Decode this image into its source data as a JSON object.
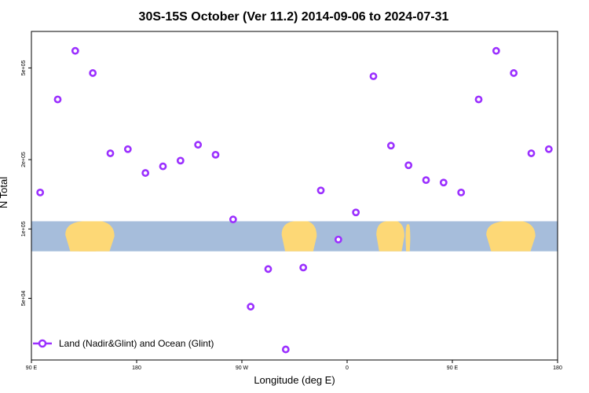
{
  "chart_data": {
    "type": "scatter",
    "title": "30S-15S October (Ver 11.2)   2014-09-06 to 2024-07-31",
    "xlabel": "Longitude (deg E)",
    "ylabel": "N Total",
    "y_scale": "log",
    "xlim": [
      90,
      540
    ],
    "ylim": [
      27000,
      720000
    ],
    "x_ticks": [
      {
        "value": 90,
        "label": "90 E"
      },
      {
        "value": 180,
        "label": "180"
      },
      {
        "value": 270,
        "label": "90 W"
      },
      {
        "value": 360,
        "label": "0"
      },
      {
        "value": 450,
        "label": "90 E"
      },
      {
        "value": 540,
        "label": "180"
      }
    ],
    "y_ticks": [
      {
        "value": 50000,
        "label": "5e+04"
      },
      {
        "value": 100000,
        "label": "1e+05"
      },
      {
        "value": 200000,
        "label": "2e+05"
      },
      {
        "value": 500000,
        "label": "5e+05"
      }
    ],
    "map_band": {
      "ylim": [
        80000,
        108000
      ],
      "ocean_color": "#a6bddb",
      "land_color": "#fdd876"
    },
    "series": [
      {
        "name": "Land (Nadir&Glint) and Ocean (Glint)",
        "color": "#9b30ff",
        "x": [
          97.5,
          112.5,
          127.5,
          142.5,
          157.5,
          172.5,
          187.5,
          202.5,
          217.5,
          232.5,
          247.5,
          262.5,
          277.5,
          292.5,
          307.5,
          322.5,
          337.5,
          352.5,
          367.5,
          382.5,
          397.5,
          412.5,
          427.5,
          442.5,
          457.5,
          472.5,
          487.5,
          502.5,
          517.5,
          532.5
        ],
        "y": [
          144000,
          365000,
          593000,
          475000,
          213000,
          222000,
          175000,
          187000,
          198000,
          232000,
          210000,
          110000,
          46000,
          67000,
          30000,
          68000,
          147000,
          90000,
          118000,
          460000,
          230000,
          189000,
          163000,
          159000,
          144000,
          365000,
          593000,
          475000,
          213000,
          222000
        ]
      }
    ],
    "legend_position": "bottom-left",
    "grid": false
  }
}
